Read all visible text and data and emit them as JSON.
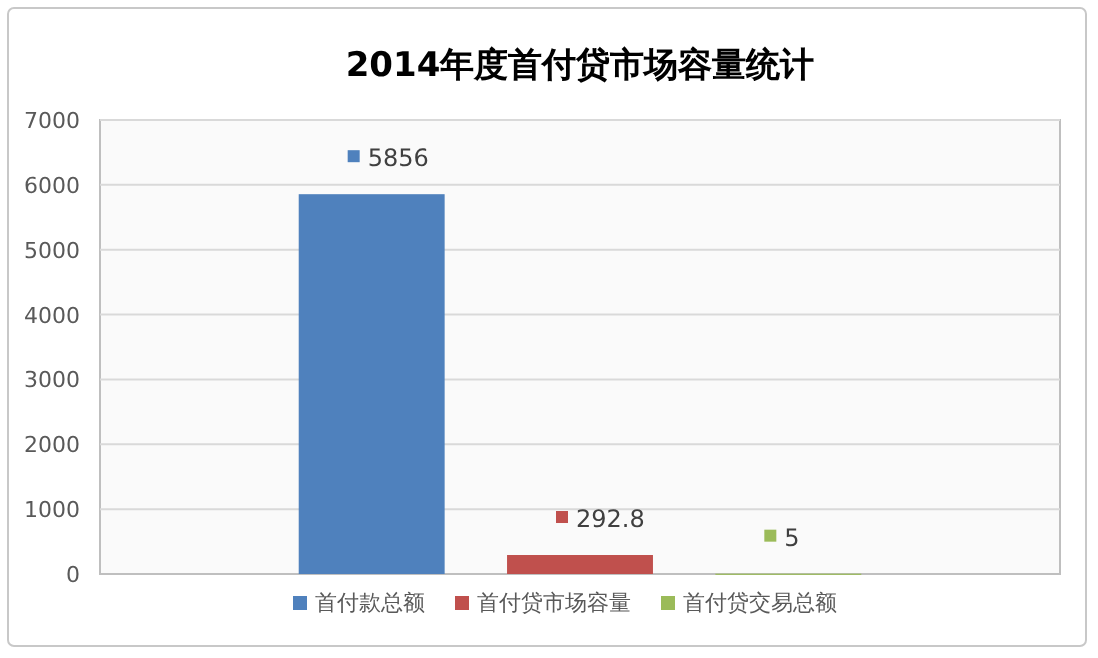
{
  "chart_data": {
    "type": "bar",
    "title": "2014年度首付贷市场容量统计",
    "categories": [
      null
    ],
    "series": [
      {
        "name": "首付款总额",
        "color": "#4f81bd",
        "values": [
          5856
        ]
      },
      {
        "name": "首付贷市场容量",
        "color": "#c0504d",
        "values": [
          292.8
        ]
      },
      {
        "name": "首付贷交易总额",
        "color": "#9bbb59",
        "values": [
          5
        ]
      }
    ],
    "ylim": [
      0,
      7000
    ],
    "yticks": [
      0,
      1000,
      2000,
      3000,
      4000,
      5000,
      6000,
      7000
    ],
    "grid": "y",
    "legend": "bottom",
    "data_labels": true
  }
}
